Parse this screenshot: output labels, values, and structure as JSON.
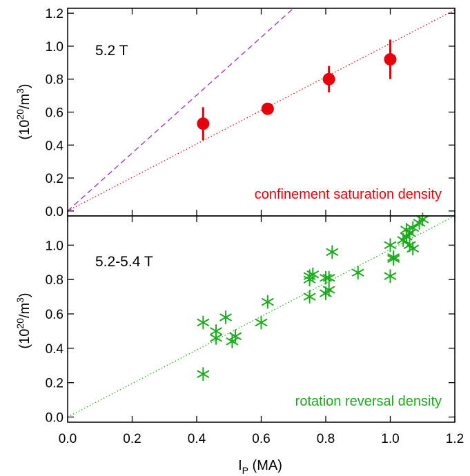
{
  "chart_data": [
    {
      "type": "scatter",
      "panel_label": "5.2 T",
      "annotation": "confinement saturation density",
      "ylabel": "(10",
      "ylabel_sup": "20",
      "ylabel_unit": "/m",
      "ylabel_sup2": "3",
      "ylabel_close": ")",
      "xlim": [
        0.0,
        1.2
      ],
      "ylim": [
        -0.03,
        1.23
      ],
      "yticks": [
        "0.0",
        "0.2",
        "0.4",
        "0.6",
        "0.8",
        "1.0",
        "1.2"
      ],
      "ytick_values": [
        0.0,
        0.2,
        0.4,
        0.6,
        0.8,
        1.0,
        1.2
      ],
      "colors": {
        "points": "#e8000b",
        "fit": "#e8000b",
        "dashed": "#9b2cc9"
      },
      "series": [
        {
          "marker": "filled-circle",
          "points": [
            {
              "x": 0.42,
              "y": 0.53,
              "err_low": 0.43,
              "err_high": 0.63
            },
            {
              "x": 0.62,
              "y": 0.62,
              "err_low": 0.6,
              "err_high": 0.65
            },
            {
              "x": 0.81,
              "y": 0.8,
              "err_low": 0.72,
              "err_high": 0.88
            },
            {
              "x": 1.0,
              "y": 0.92,
              "err_low": 0.8,
              "err_high": 1.04
            }
          ]
        }
      ],
      "lines": [
        {
          "style": "dotted",
          "color": "#e8000b",
          "x": [
            0.0,
            1.2
          ],
          "y": [
            0.0,
            1.22
          ]
        },
        {
          "style": "dashed",
          "color": "#9b2cc9",
          "x": [
            0.0,
            0.7
          ],
          "y": [
            0.0,
            1.23
          ]
        }
      ]
    },
    {
      "type": "scatter",
      "panel_label": "5.2-5.4 T",
      "annotation": "rotation reversal density",
      "ylabel": "(10",
      "ylabel_sup": "20",
      "ylabel_unit": "/m",
      "ylabel_sup2": "3",
      "ylabel_close": ")",
      "xlabel": "I",
      "xlabel_sub": "P",
      "xlabel_unit": " (MA)",
      "xlim": [
        0.0,
        1.2
      ],
      "ylim": [
        -0.03,
        1.17
      ],
      "xticks": [
        "0.0",
        "0.2",
        "0.4",
        "0.6",
        "0.8",
        "1.0",
        "1.2"
      ],
      "xtick_values": [
        0.0,
        0.2,
        0.4,
        0.6,
        0.8,
        1.0,
        1.2
      ],
      "yticks": [
        "0.0",
        "0.2",
        "0.4",
        "0.6",
        "0.8",
        "1.0"
      ],
      "ytick_values": [
        0.0,
        0.2,
        0.4,
        0.6,
        0.8,
        1.0
      ],
      "colors": {
        "points": "#1aab1a",
        "fit": "#1aab1a"
      },
      "series": [
        {
          "marker": "asterisk",
          "points": [
            {
              "x": 0.42,
              "y": 0.55
            },
            {
              "x": 0.42,
              "y": 0.25
            },
            {
              "x": 0.46,
              "y": 0.5
            },
            {
              "x": 0.46,
              "y": 0.46
            },
            {
              "x": 0.49,
              "y": 0.58
            },
            {
              "x": 0.51,
              "y": 0.44
            },
            {
              "x": 0.52,
              "y": 0.47
            },
            {
              "x": 0.6,
              "y": 0.55
            },
            {
              "x": 0.62,
              "y": 0.67
            },
            {
              "x": 0.75,
              "y": 0.7
            },
            {
              "x": 0.75,
              "y": 0.8
            },
            {
              "x": 0.75,
              "y": 0.82
            },
            {
              "x": 0.76,
              "y": 0.83
            },
            {
              "x": 0.8,
              "y": 0.72
            },
            {
              "x": 0.8,
              "y": 0.81
            },
            {
              "x": 0.81,
              "y": 0.74
            },
            {
              "x": 0.81,
              "y": 0.81
            },
            {
              "x": 0.82,
              "y": 0.96
            },
            {
              "x": 0.9,
              "y": 0.84
            },
            {
              "x": 1.0,
              "y": 0.82
            },
            {
              "x": 1.0,
              "y": 1.0
            },
            {
              "x": 1.01,
              "y": 0.92
            },
            {
              "x": 1.01,
              "y": 0.93
            },
            {
              "x": 1.04,
              "y": 1.03
            },
            {
              "x": 1.05,
              "y": 1.05
            },
            {
              "x": 1.05,
              "y": 1.09
            },
            {
              "x": 1.06,
              "y": 1.0
            },
            {
              "x": 1.06,
              "y": 1.07
            },
            {
              "x": 1.07,
              "y": 0.98
            },
            {
              "x": 1.07,
              "y": 1.1
            },
            {
              "x": 1.09,
              "y": 1.13
            },
            {
              "x": 1.1,
              "y": 1.15
            }
          ]
        }
      ],
      "lines": [
        {
          "style": "dotted",
          "color": "#1aab1a",
          "x": [
            0.0,
            1.2
          ],
          "y": [
            0.0,
            1.17
          ]
        }
      ]
    }
  ]
}
